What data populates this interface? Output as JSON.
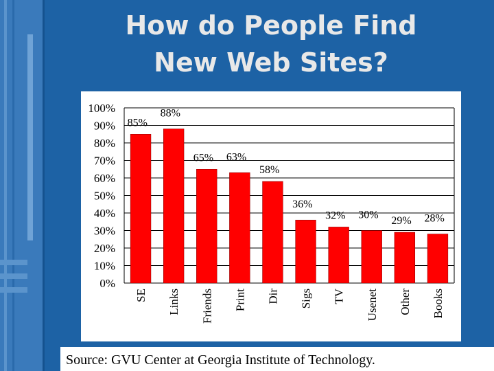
{
  "slide": {
    "title": [
      "How do People Find",
      "New Web Sites?"
    ],
    "source": "Source: GVU Center at Georgia Institute of Technology."
  },
  "chart_data": {
    "type": "bar",
    "categories": [
      "SE",
      "Links",
      "Friends",
      "Print",
      "Dir",
      "Sigs",
      "TV",
      "Usenet",
      "Other",
      "Books"
    ],
    "values": [
      85,
      88,
      65,
      63,
      58,
      36,
      32,
      30,
      29,
      28
    ],
    "value_labels": [
      "85%",
      "88%",
      "65%",
      "63%",
      "58%",
      "36%",
      "32%",
      "30%",
      "29%",
      "28%"
    ],
    "color": "#ff0000",
    "ylim": [
      0,
      100
    ],
    "yticks": [
      {
        "value": 0,
        "label": "0%"
      },
      {
        "value": 10,
        "label": "10%"
      },
      {
        "value": 20,
        "label": "20%"
      },
      {
        "value": 30,
        "label": "30%"
      },
      {
        "value": 40,
        "label": "40%"
      },
      {
        "value": 50,
        "label": "50%"
      },
      {
        "value": 60,
        "label": "60%"
      },
      {
        "value": 70,
        "label": "70%"
      },
      {
        "value": 80,
        "label": "80%"
      },
      {
        "value": 90,
        "label": "90%"
      },
      {
        "value": 100,
        "label": "100%"
      }
    ],
    "grid": true
  }
}
